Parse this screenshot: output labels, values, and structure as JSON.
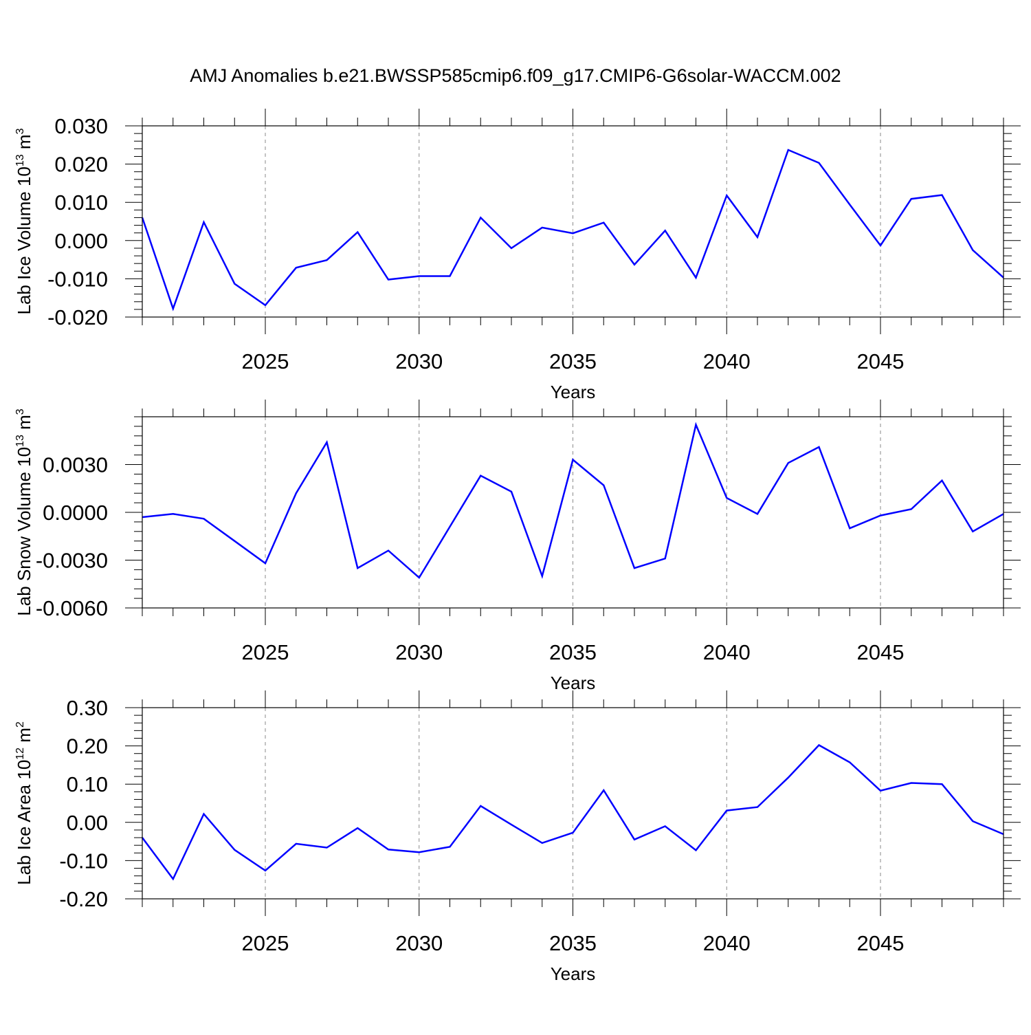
{
  "title": "AMJ Anomalies b.e21.BWSSP585cmip6.f09_g17.CMIP6-G6solar-WACCM.002",
  "line_color": "#0000ff",
  "chart_data": [
    {
      "type": "line",
      "x": [
        2021,
        2022,
        2023,
        2024,
        2025,
        2026,
        2027,
        2028,
        2029,
        2030,
        2031,
        2032,
        2033,
        2034,
        2035,
        2036,
        2037,
        2038,
        2039,
        2040,
        2041,
        2042,
        2043,
        2044,
        2045,
        2046,
        2047,
        2048,
        2049
      ],
      "values": [
        0.006,
        -0.0178,
        0.0048,
        -0.0113,
        -0.0169,
        -0.0071,
        -0.0051,
        0.0022,
        -0.0102,
        -0.0093,
        -0.0093,
        0.006,
        -0.002,
        0.0034,
        0.0019,
        0.0047,
        -0.0063,
        0.0026,
        -0.0097,
        0.0118,
        0.0009,
        0.0237,
        0.0203,
        0.0094,
        -0.0013,
        0.0109,
        0.0119,
        -0.0025,
        -0.0097
      ],
      "xlim": [
        2021,
        2049
      ],
      "ylim": [
        -0.02,
        0.03
      ],
      "ytick_values": [
        -0.02,
        -0.01,
        0.0,
        0.01,
        0.02,
        0.03
      ],
      "ytick_labels": [
        "-0.020",
        "-0.010",
        "0.000",
        "0.010",
        "0.020",
        "0.030"
      ],
      "xtick_values": [
        2025,
        2030,
        2035,
        2040,
        2045
      ],
      "xtick_labels": [
        "2025",
        "2030",
        "2035",
        "2040",
        "2045"
      ],
      "xlabel": "Years",
      "ylabel_text": "Lab Ice Volume 10",
      "ylabel_exp": "13",
      "ylabel_unit": " m",
      "ylabel_unit_exp": "3"
    },
    {
      "type": "line",
      "x": [
        2021,
        2022,
        2023,
        2024,
        2025,
        2026,
        2027,
        2028,
        2029,
        2030,
        2031,
        2032,
        2033,
        2034,
        2035,
        2036,
        2037,
        2038,
        2039,
        2040,
        2041,
        2042,
        2043,
        2044,
        2045,
        2046,
        2047,
        2048,
        2049
      ],
      "values": [
        -0.0003,
        -0.0001,
        -0.0004,
        -0.0018,
        -0.0032,
        0.0012,
        0.0044,
        -0.0035,
        -0.0024,
        -0.0041,
        -0.0009,
        0.0023,
        0.0013,
        -0.004,
        0.0033,
        0.0017,
        -0.0035,
        -0.0029,
        0.0055,
        0.0009,
        -0.0001,
        0.0031,
        0.0041,
        -0.001,
        -0.0002,
        0.0002,
        0.002,
        -0.0012,
        -0.0001
      ],
      "xlim": [
        2021,
        2049
      ],
      "ylim": [
        -0.006,
        0.006
      ],
      "ytick_values": [
        -0.006,
        -0.003,
        0.0,
        0.003
      ],
      "ytick_labels": [
        "-0.0060",
        "-0.0030",
        "0.0000",
        "0.0030"
      ],
      "xtick_values": [
        2025,
        2030,
        2035,
        2040,
        2045
      ],
      "xtick_labels": [
        "2025",
        "2030",
        "2035",
        "2040",
        "2045"
      ],
      "xlabel": "Years",
      "ylabel_text": "Lab Snow Volume 10",
      "ylabel_exp": "13",
      "ylabel_unit": " m",
      "ylabel_unit_exp": "3"
    },
    {
      "type": "line",
      "x": [
        2021,
        2022,
        2023,
        2024,
        2025,
        2026,
        2027,
        2028,
        2029,
        2030,
        2031,
        2032,
        2033,
        2034,
        2035,
        2036,
        2037,
        2038,
        2039,
        2040,
        2041,
        2042,
        2043,
        2044,
        2045,
        2046,
        2047,
        2048,
        2049
      ],
      "values": [
        -0.04,
        -0.148,
        0.022,
        -0.072,
        -0.126,
        -0.056,
        -0.066,
        -0.015,
        -0.071,
        -0.078,
        -0.064,
        0.043,
        -0.006,
        -0.054,
        -0.027,
        0.084,
        -0.045,
        -0.01,
        -0.073,
        0.031,
        0.04,
        0.117,
        0.202,
        0.157,
        0.083,
        0.103,
        0.1,
        0.003,
        -0.031
      ],
      "xlim": [
        2021,
        2049
      ],
      "ylim": [
        -0.2,
        0.3
      ],
      "ytick_values": [
        -0.2,
        -0.1,
        0.0,
        0.1,
        0.2,
        0.3
      ],
      "ytick_labels": [
        "-0.20",
        "-0.10",
        "0.00",
        "0.10",
        "0.20",
        "0.30"
      ],
      "xtick_values": [
        2025,
        2030,
        2035,
        2040,
        2045
      ],
      "xtick_labels": [
        "2025",
        "2030",
        "2035",
        "2040",
        "2045"
      ],
      "xlabel": "Years",
      "ylabel_text": "Lab Ice Area 10",
      "ylabel_exp": "12",
      "ylabel_unit": " m",
      "ylabel_unit_exp": "2"
    }
  ]
}
